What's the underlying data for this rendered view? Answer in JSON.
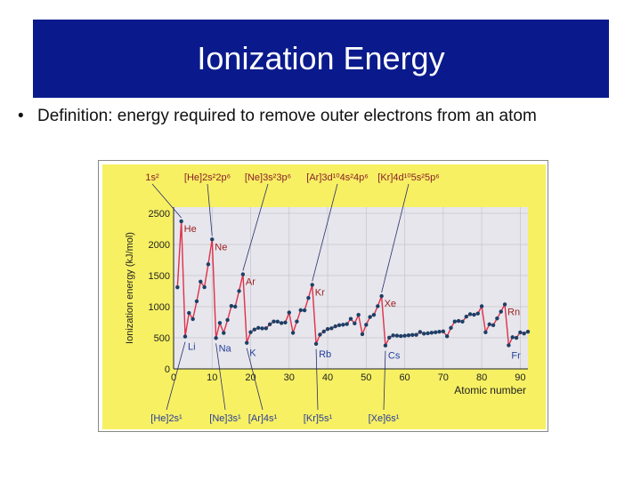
{
  "slide": {
    "title": "Ionization Energy",
    "bullet": "Definition: energy required to remove outer electrons from an atom"
  },
  "colors": {
    "title_bg": "#0a1a8c",
    "panel_bg": "#f7f063",
    "plot_bg": "#e6e6ec",
    "line": "#e0304a",
    "point": "#1d3f66",
    "noble_label": "#9b1d1d",
    "alkali_label": "#233f9a",
    "config_top": "#8a1f2a",
    "config_bottom": "#2a3c9b"
  },
  "chart_data": {
    "type": "line",
    "title": "",
    "xlabel": "Atomic number",
    "ylabel": "Ionization energy (kJ/mol)",
    "xlim": [
      0,
      92
    ],
    "ylim": [
      0,
      2600
    ],
    "x_ticks": [
      0,
      10,
      20,
      30,
      40,
      50,
      60,
      70,
      80,
      90
    ],
    "y_ticks": [
      0,
      500,
      1000,
      1500,
      2000,
      2500
    ],
    "grid": true,
    "series": [
      {
        "name": "",
        "x": [
          1,
          2,
          3,
          4,
          5,
          6,
          7,
          8,
          9,
          10,
          11,
          12,
          13,
          14,
          15,
          16,
          17,
          18,
          19,
          20,
          21,
          22,
          23,
          24,
          25,
          26,
          27,
          28,
          29,
          30,
          31,
          32,
          33,
          34,
          35,
          36,
          37,
          38,
          39,
          40,
          41,
          42,
          43,
          44,
          45,
          46,
          47,
          48,
          49,
          50,
          51,
          52,
          53,
          54,
          55,
          56,
          57,
          58,
          59,
          60,
          61,
          62,
          63,
          64,
          65,
          66,
          67,
          68,
          69,
          70,
          71,
          72,
          73,
          74,
          75,
          76,
          77,
          78,
          79,
          80,
          81,
          82,
          83,
          84,
          85,
          86,
          87,
          88,
          89,
          90,
          91,
          92
        ],
        "y": [
          1312,
          2372,
          520,
          899,
          801,
          1086,
          1402,
          1314,
          1681,
          2081,
          496,
          738,
          578,
          786,
          1012,
          1000,
          1251,
          1521,
          419,
          590,
          633,
          659,
          651,
          653,
          717,
          762,
          760,
          737,
          746,
          906,
          579,
          762,
          944,
          941,
          1140,
          1351,
          403,
          550,
          600,
          640,
          652,
          684,
          702,
          710,
          720,
          804,
          731,
          868,
          558,
          709,
          834,
          869,
          1008,
          1170,
          376,
          503,
          538,
          534,
          527,
          533,
          540,
          545,
          547,
          593,
          566,
          573,
          581,
          589,
          597,
          603,
          524,
          659,
          761,
          770,
          760,
          840,
          880,
          870,
          890,
          1007,
          589,
          716,
          703,
          812,
          920,
          1037,
          380,
          509,
          499,
          587,
          568,
          598
        ]
      }
    ],
    "element_labels": [
      {
        "symbol": "He",
        "z": 2
      },
      {
        "symbol": "Ne",
        "z": 10
      },
      {
        "symbol": "Ar",
        "z": 18
      },
      {
        "symbol": "Kr",
        "z": 36
      },
      {
        "symbol": "Xe",
        "z": 54
      },
      {
        "symbol": "Rn",
        "z": 86
      },
      {
        "symbol": "Li",
        "z": 3
      },
      {
        "symbol": "Na",
        "z": 11
      },
      {
        "symbol": "K",
        "z": 19
      },
      {
        "symbol": "Rb",
        "z": 37
      },
      {
        "symbol": "Cs",
        "z": 55
      },
      {
        "symbol": "Fr",
        "z": 87
      }
    ],
    "top_configs": [
      {
        "text": "1s²",
        "z": 2
      },
      {
        "text": "[He]2s²2p⁶",
        "z": 10
      },
      {
        "text": "[Ne]3s²3p⁶",
        "z": 18
      },
      {
        "text": "[Ar]3d¹⁰4s²4p⁶",
        "z": 36
      },
      {
        "text": "[Kr]4d¹⁰5s²5p⁶",
        "z": 54
      }
    ],
    "bottom_configs": [
      {
        "text": "[He]2s¹",
        "z": 3
      },
      {
        "text": "[Ne]3s¹",
        "z": 11
      },
      {
        "text": "[Ar]4s¹",
        "z": 19
      },
      {
        "text": "[Kr]5s¹",
        "z": 37
      },
      {
        "text": "[Xe]6s¹",
        "z": 55
      }
    ]
  }
}
